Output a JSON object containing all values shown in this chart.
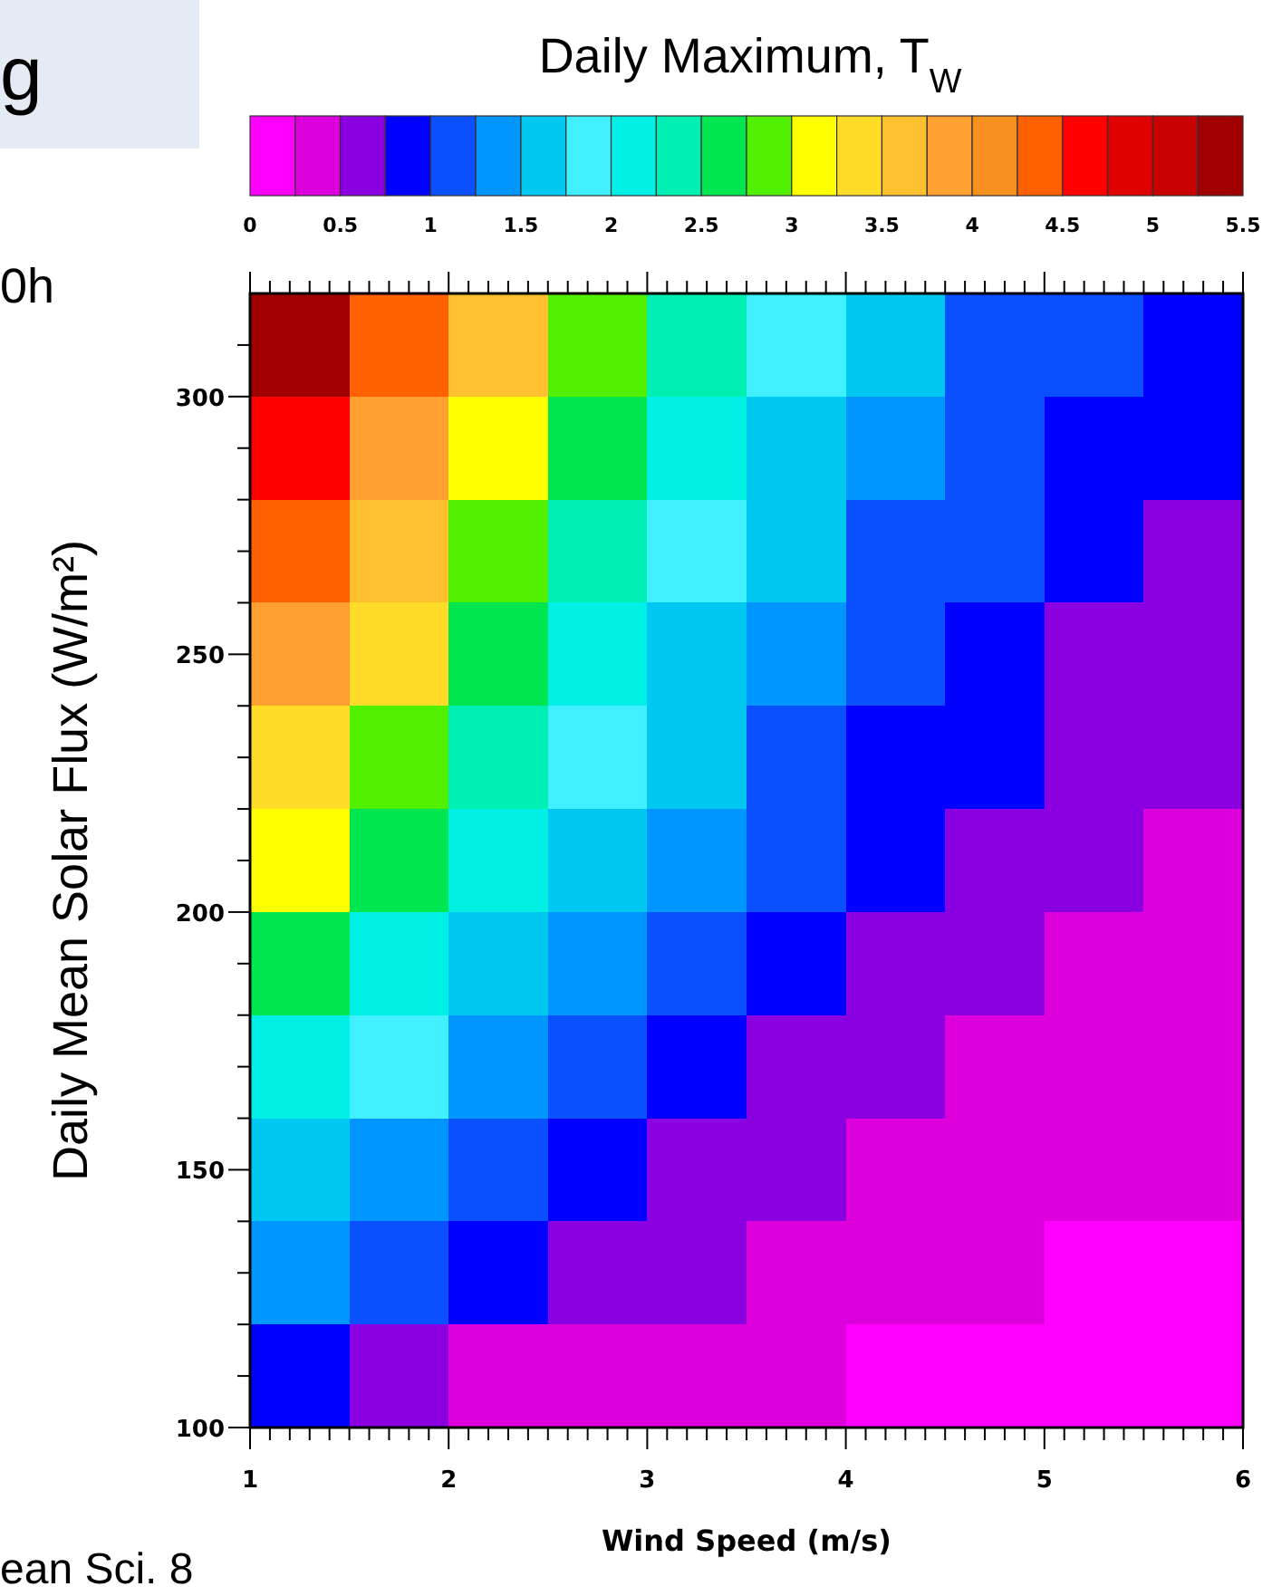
{
  "chart_data": {
    "type": "heatmap",
    "title": "Daily Maximum,  T$_{W}$",
    "xlabel": "Wind Speed  (m/s)",
    "ylabel": "Daily Mean Solar Flux (W/m²)",
    "annotations": [
      "g",
      "0h",
      "ean Sci. 8"
    ],
    "x": [
      1.25,
      1.75,
      2.25,
      2.75,
      3.25,
      3.75,
      4.25,
      4.75,
      5.25,
      5.75
    ],
    "y": [
      310,
      290,
      270,
      250,
      230,
      210,
      190,
      170,
      150,
      130,
      110
    ],
    "cells": [
      [
        5.3,
        4.28,
        3.5,
        2.85,
        2.31,
        1.89,
        1.55,
        1.24,
        1.0,
        0.85
      ],
      [
        4.68,
        3.95,
        3.21,
        2.59,
        2.09,
        1.7,
        1.38,
        1.1,
        0.91,
        0.79
      ],
      [
        4.28,
        3.63,
        2.94,
        2.36,
        1.9,
        1.54,
        1.24,
        1.0,
        0.83,
        0.71
      ],
      [
        3.85,
        3.28,
        2.66,
        2.14,
        1.71,
        1.38,
        1.11,
        0.9,
        0.74,
        0.62
      ],
      [
        3.45,
        2.91,
        2.38,
        1.91,
        1.53,
        1.21,
        0.98,
        0.79,
        0.64,
        0.55
      ],
      [
        3.01,
        2.53,
        2.06,
        1.66,
        1.31,
        1.04,
        0.83,
        0.67,
        0.56,
        0.48
      ],
      [
        2.55,
        2.14,
        1.74,
        1.39,
        1.1,
        0.87,
        0.7,
        0.56,
        0.47,
        0.41
      ],
      [
        2.11,
        1.76,
        1.41,
        1.12,
        0.89,
        0.71,
        0.56,
        0.46,
        0.39,
        0.34
      ],
      [
        1.69,
        1.39,
        1.1,
        0.87,
        0.69,
        0.55,
        0.44,
        0.36,
        0.3,
        0.27
      ],
      [
        1.26,
        1.03,
        0.81,
        0.64,
        0.51,
        0.41,
        0.33,
        0.27,
        0.23,
        0.2
      ],
      [
        0.89,
        0.65,
        0.49,
        0.39,
        0.32,
        0.27,
        0.22,
        0.19,
        0.17,
        0.15
      ]
    ],
    "colors": [
      "#ff00ff",
      "#dd00dd",
      "#8a00e0",
      "#0000ff",
      "#0a50ff",
      "#0096ff",
      "#00c8f0",
      "#40f0ff",
      "#00f0e6",
      "#00f0b4",
      "#00e650",
      "#50f000",
      "#ffff00",
      "#ffdc28",
      "#ffc030",
      "#ffa030",
      "#f89020",
      "#ff6000",
      "#ff0000",
      "#e00000",
      "#c80000",
      "#a00000"
    ],
    "clim": [
      0,
      5.5
    ],
    "cticks": [
      0,
      0.5,
      1,
      1.5,
      2,
      2.5,
      3,
      3.5,
      4,
      4.5,
      5,
      5.5
    ],
    "xlim": [
      1,
      6
    ],
    "xticks": [
      1,
      {
        "value": 1.1,
        "label": null
      },
      {
        "value": 1.2,
        "label": null
      },
      {
        "value": 1.3,
        "label": null
      },
      {
        "value": 1.4,
        "label": null
      },
      {
        "value": 1.5,
        "label": null
      },
      {
        "value": 1.6,
        "label": null
      },
      {
        "value": 1.7,
        "label": null
      },
      {
        "value": 1.8,
        "label": null
      },
      {
        "value": 1.9,
        "label": null
      },
      2,
      {
        "value": 2.1,
        "label": null
      },
      {
        "value": 2.2,
        "label": null
      },
      {
        "value": 2.3,
        "label": null
      },
      {
        "value": 2.4,
        "label": null
      },
      {
        "value": 2.5,
        "label": null
      },
      {
        "value": 2.6,
        "label": null
      },
      {
        "value": 2.7,
        "label": null
      },
      {
        "value": 2.8,
        "label": null
      },
      {
        "value": 2.9,
        "label": null
      },
      3,
      {
        "value": 3.1,
        "label": null
      },
      {
        "value": 3.2,
        "label": null
      },
      {
        "value": 3.3,
        "label": null
      },
      {
        "value": 3.4,
        "label": null
      },
      {
        "value": 3.5,
        "label": null
      },
      {
        "value": 3.6,
        "label": null
      },
      {
        "value": 3.7,
        "label": null
      },
      {
        "value": 3.8,
        "label": null
      },
      {
        "value": 3.9,
        "label": null
      },
      4,
      {
        "value": 4.1,
        "label": null
      },
      {
        "value": 4.2,
        "label": null
      },
      {
        "value": 4.3,
        "label": null
      },
      {
        "value": 4.4,
        "label": null
      },
      {
        "value": 4.5,
        "label": null
      },
      {
        "value": 4.6,
        "label": null
      },
      {
        "value": 4.7,
        "label": null
      },
      {
        "value": 4.8,
        "label": null
      },
      {
        "value": 4.9,
        "label": null
      },
      5,
      {
        "value": 5.1,
        "label": null
      },
      {
        "value": 5.2,
        "label": null
      },
      {
        "value": 5.3,
        "label": null
      },
      {
        "value": 5.4,
        "label": null
      },
      {
        "value": 5.5,
        "label": null
      },
      {
        "value": 5.6,
        "label": null
      },
      {
        "value": 5.7,
        "label": null
      },
      {
        "value": 5.8,
        "label": null
      },
      {
        "value": 5.9,
        "label": null
      },
      6
    ],
    "ylim": [
      100,
      320
    ],
    "yticks": [
      100,
      {
        "value": 110,
        "label": null
      },
      {
        "value": 120,
        "label": null
      },
      {
        "value": 130,
        "label": null
      },
      {
        "value": 140,
        "label": null
      },
      150,
      {
        "value": 160,
        "label": null
      },
      {
        "value": 170,
        "label": null
      },
      {
        "value": 180,
        "label": null
      },
      {
        "value": 190,
        "label": null
      },
      200,
      {
        "value": 210,
        "label": null
      },
      {
        "value": 220,
        "label": null
      },
      {
        "value": 230,
        "label": null
      },
      {
        "value": 240,
        "label": null
      },
      250,
      {
        "value": 260,
        "label": null
      },
      {
        "value": 270,
        "label": null
      },
      {
        "value": 280,
        "label": null
      },
      {
        "value": 290,
        "label": null
      },
      300,
      {
        "value": 310,
        "label": null
      }
    ]
  }
}
